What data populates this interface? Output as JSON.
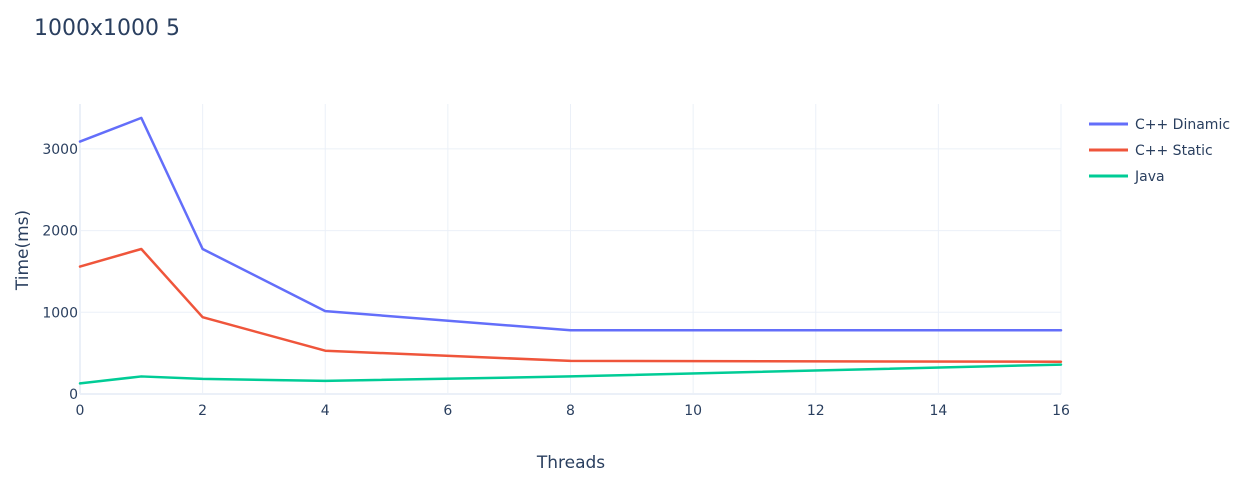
{
  "chart_data": {
    "type": "line",
    "title": "1000x1000 5",
    "xlabel": "Threads",
    "ylabel": "Time(ms)",
    "xlim": [
      0,
      16
    ],
    "ylim": [
      0,
      3550
    ],
    "xticks": [
      0,
      2,
      4,
      6,
      8,
      10,
      12,
      14,
      16
    ],
    "yticks": [
      0,
      1000,
      2000,
      3000
    ],
    "grid": true,
    "legend_position": "top-right",
    "series": [
      {
        "name": "C++ Dinamic",
        "color": "#636efa",
        "x": [
          0,
          1,
          2,
          4,
          8,
          16
        ],
        "y": [
          3090,
          3380,
          1775,
          1015,
          780,
          780
        ]
      },
      {
        "name": "C++ Static",
        "color": "#ef553b",
        "x": [
          0,
          1,
          2,
          4,
          8,
          16
        ],
        "y": [
          1560,
          1775,
          940,
          530,
          405,
          395
        ]
      },
      {
        "name": "Java",
        "color": "#00cc96",
        "x": [
          0,
          1,
          2,
          4,
          8,
          16
        ],
        "y": [
          130,
          215,
          185,
          160,
          215,
          360
        ]
      }
    ]
  }
}
